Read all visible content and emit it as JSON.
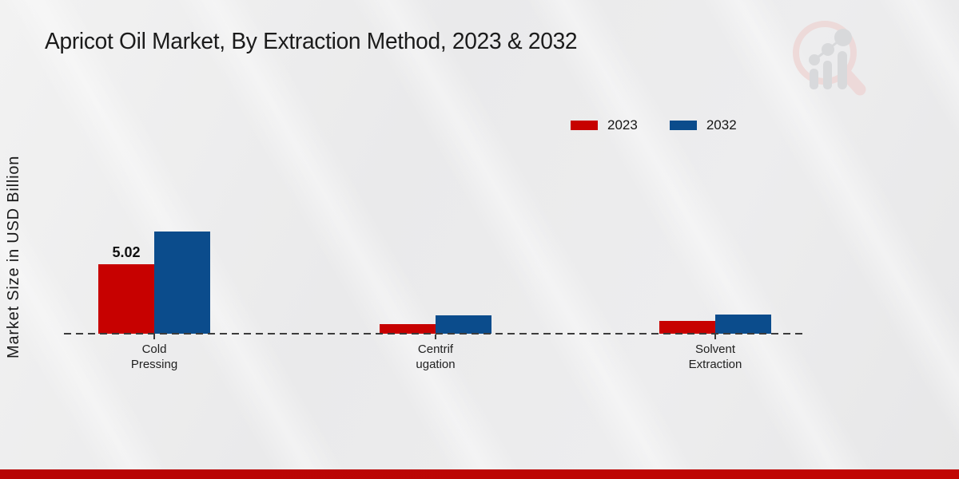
{
  "page": {
    "accent_strip_color": "#b70505",
    "background_base": "#ececec"
  },
  "chart_data": {
    "type": "bar",
    "title": "Apricot Oil Market, By Extraction Method, 2023 & 2032",
    "xlabel": "",
    "ylabel": "Market Size in USD Billion",
    "categories": [
      "Cold Pressing",
      "Centrifugation",
      "Solvent Extraction"
    ],
    "category_label_lines": [
      [
        "Cold",
        "Pressing"
      ],
      [
        "Centrif",
        "ugation"
      ],
      [
        "Solvent",
        "Extraction"
      ]
    ],
    "series": [
      {
        "name": "2023",
        "color": "#c70100",
        "values": [
          5.02,
          0.7,
          0.9
        ]
      },
      {
        "name": "2032",
        "color": "#0b4c8c",
        "values": [
          7.4,
          1.3,
          1.4
        ]
      }
    ],
    "annotations": [
      {
        "text": "5.02",
        "series": "2023",
        "category_index": 0
      }
    ],
    "baseline_value": 0,
    "ylim": [
      0,
      8
    ],
    "grid": false,
    "axis_line_style": "dashed",
    "legend_position": "top-right",
    "watermark": "market-research-future-logo"
  }
}
